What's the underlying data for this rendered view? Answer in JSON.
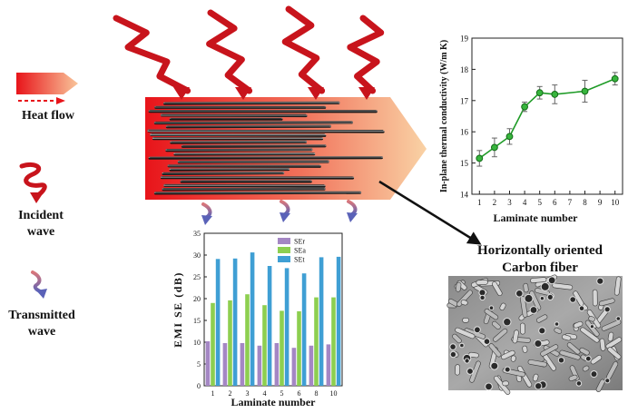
{
  "legend": {
    "heat_flow": "Heat flow",
    "incident_line1": "Incident",
    "incident_line2": "wave",
    "transmitted_line1": "Transmitted",
    "transmitted_line2": "wave"
  },
  "sem": {
    "caption_line1": "Horizontally oriented",
    "caption_line2": "Carbon fiber"
  },
  "colors": {
    "heat_start": "#e8141a",
    "heat_end": "#f9c59a",
    "incident_wave": "#c8141c",
    "transmitted_top": "#d9777b",
    "transmitted_bottom": "#5a62b8",
    "tc_line": "#1e9b26",
    "ser": "#a487c4",
    "sea": "#8dcf50",
    "set": "#3f9fd4"
  },
  "chart_data": [
    {
      "type": "line",
      "x": [
        1,
        2,
        3,
        4,
        5,
        6,
        8,
        10
      ],
      "y": [
        15.15,
        15.5,
        15.85,
        16.8,
        17.25,
        17.2,
        17.3,
        17.7
      ],
      "error": [
        0.25,
        0.3,
        0.25,
        0.15,
        0.2,
        0.3,
        0.35,
        0.2
      ],
      "xlabel": "Laminate number",
      "ylabel": "In-plane thermal conductivity (W/m K)",
      "xticks": [
        "1",
        "2",
        "3",
        "4",
        "5",
        "6",
        "7",
        "8",
        "9",
        "10"
      ],
      "yticks": [
        "14",
        "15",
        "16",
        "17",
        "18",
        "19"
      ],
      "xlim": [
        0.5,
        10.5
      ],
      "ylim": [
        14,
        19
      ]
    },
    {
      "type": "bar",
      "categories": [
        "1",
        "2",
        "3",
        "4",
        "5",
        "6",
        "8",
        "10"
      ],
      "series": [
        {
          "name": "SEr",
          "values": [
            10.2,
            9.8,
            9.8,
            9.2,
            9.8,
            8.7,
            9.2,
            9.5
          ]
        },
        {
          "name": "SEa",
          "values": [
            19.0,
            19.6,
            21.0,
            18.5,
            17.2,
            17.1,
            20.3,
            20.3
          ]
        },
        {
          "name": "SEt",
          "values": [
            29.1,
            29.2,
            30.6,
            27.5,
            27.0,
            25.8,
            29.5,
            29.6
          ]
        }
      ],
      "xlabel": "Laminate number",
      "ylabel": "EMI SE (dB)",
      "yticks": [
        "0",
        "5",
        "10",
        "15",
        "20",
        "25",
        "30",
        "35"
      ],
      "ylim": [
        0,
        35
      ]
    }
  ]
}
